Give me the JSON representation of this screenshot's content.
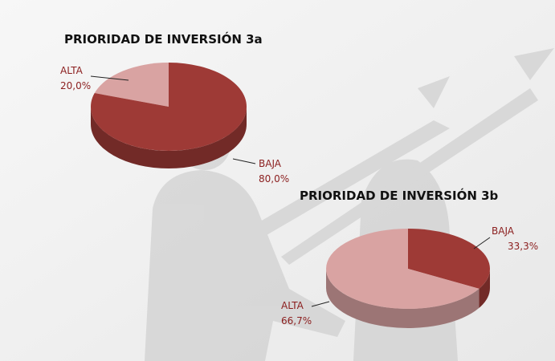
{
  "chart_data": [
    {
      "type": "pie",
      "title": "PRIORIDAD DE INVERSIÓN 3a",
      "categories": [
        "ALTA",
        "BAJA"
      ],
      "values": [
        20,
        80
      ],
      "value_labels": [
        "20,0%",
        "80,0%"
      ],
      "colors": [
        "#d9a3a2",
        "#9e3a36"
      ]
    },
    {
      "type": "pie",
      "title": "PRIORIDAD DE INVERSIÓN 3b",
      "categories": [
        "BAJA",
        "ALTA"
      ],
      "values": [
        33.3,
        66.7
      ],
      "value_labels": [
        "33,3%",
        "66,7%"
      ],
      "colors": [
        "#9e3a36",
        "#d9a3a2"
      ]
    }
  ]
}
